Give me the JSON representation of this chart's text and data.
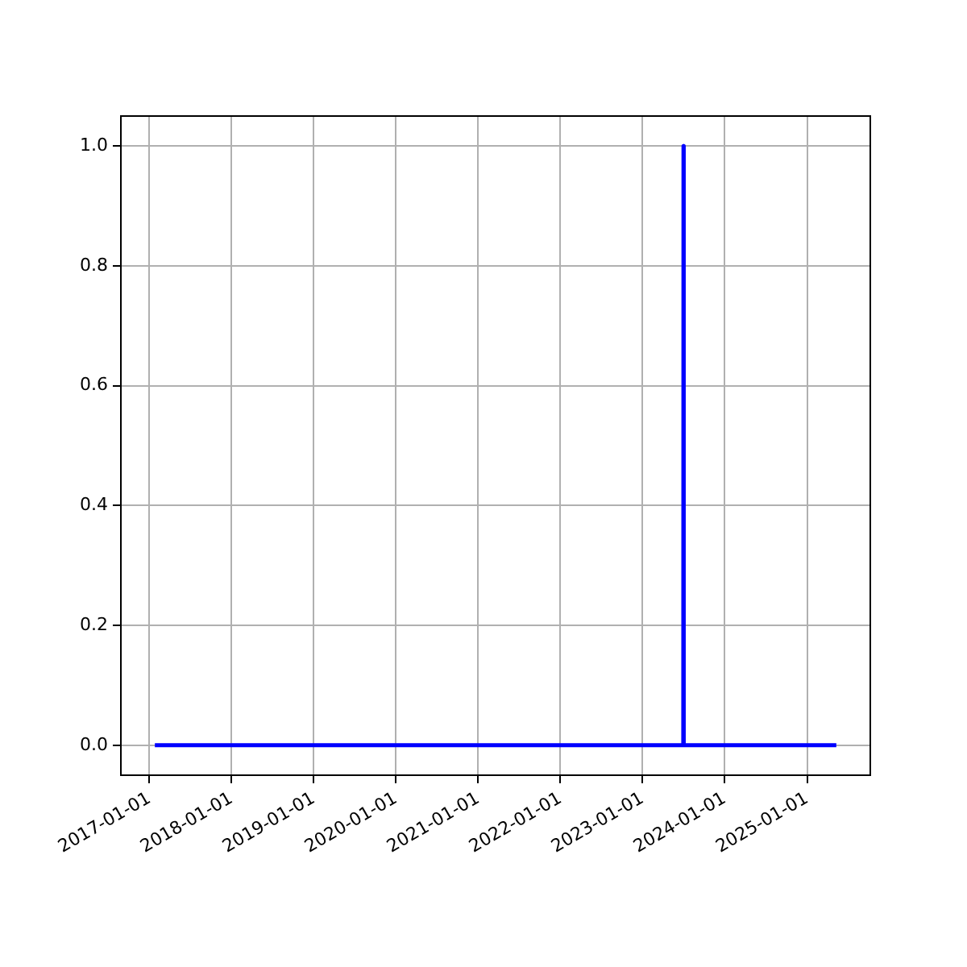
{
  "chart_data": {
    "type": "line",
    "x": [
      "2017-01-25",
      "2023-07-01",
      "2023-07-02",
      "2023-07-03",
      "2025-05-11"
    ],
    "series": [
      {
        "color": "#0000ff",
        "values": [
          0,
          0,
          1,
          0,
          0
        ]
      }
    ],
    "xlim": [
      "2016-08-27",
      "2025-10-09"
    ],
    "xticks": [
      "2017-01-01",
      "2018-01-01",
      "2019-01-01",
      "2020-01-01",
      "2021-01-01",
      "2022-01-01",
      "2023-01-01",
      "2024-01-01",
      "2025-01-01"
    ],
    "ylim": [
      -0.05,
      1.05
    ],
    "yticks": [
      {
        "value": 0,
        "label": "0.0"
      },
      {
        "value": 0.2,
        "label": "0.2"
      },
      {
        "value": 0.4,
        "label": "0.4"
      },
      {
        "value": 0.6,
        "label": "0.6"
      },
      {
        "value": 0.8,
        "label": "0.8"
      },
      {
        "value": 1,
        "label": "1.0"
      }
    ],
    "grid": true,
    "legend": false,
    "marker": "none",
    "line_style": "solid"
  }
}
